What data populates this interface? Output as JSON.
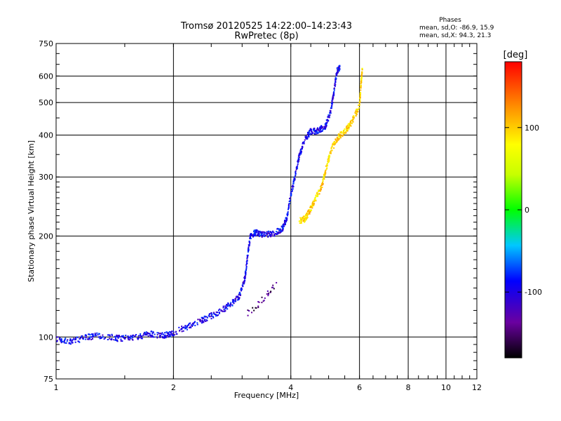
{
  "chart_data": {
    "type": "scatter",
    "title": "Tromsø 20120525 14:22:00–14:23:43",
    "subtitle": "RwPretec (8p)",
    "xlabel": "Frequency [MHz]",
    "ylabel": "Stationary phase Virtual Height [km]",
    "xscale": "log",
    "yscale": "log",
    "xlim": [
      1,
      12
    ],
    "ylim": [
      75,
      750
    ],
    "x_ticks": [
      1,
      2,
      4,
      6,
      8,
      10,
      12
    ],
    "y_ticks": [
      75,
      100,
      200,
      300,
      400,
      500,
      600,
      750
    ],
    "x_grid": [
      1,
      2,
      4,
      6,
      8,
      10,
      12
    ],
    "y_grid": [
      100,
      200,
      300,
      400,
      500,
      600
    ],
    "grid": true,
    "phases_info": {
      "heading": "Phases",
      "line_o": "mean, sd,O:  -86.9, 15.9",
      "line_x": "mean, sd,X:  94.3, 21.3"
    },
    "colorbar": {
      "label": "[deg]",
      "range": [
        -180,
        180
      ],
      "ticks": [
        100,
        0,
        -100
      ]
    },
    "traces": [
      {
        "role": "o-mode trace",
        "phase": -95,
        "points": [
          [
            1.0,
            98
          ],
          [
            1.1,
            97
          ],
          [
            1.2,
            100
          ],
          [
            1.3,
            101
          ],
          [
            1.45,
            99
          ],
          [
            1.6,
            100
          ],
          [
            1.75,
            102
          ],
          [
            1.9,
            101
          ],
          [
            2.0,
            103
          ],
          [
            2.2,
            108
          ],
          [
            2.4,
            113
          ],
          [
            2.6,
            118
          ],
          [
            2.8,
            125
          ],
          [
            2.95,
            132
          ],
          [
            3.05,
            150
          ],
          [
            3.1,
            175
          ],
          [
            3.15,
            200
          ],
          [
            3.25,
            205
          ],
          [
            3.4,
            202
          ],
          [
            3.6,
            203
          ],
          [
            3.8,
            210
          ],
          [
            3.9,
            225
          ],
          [
            4.0,
            265
          ],
          [
            4.1,
            300
          ],
          [
            4.2,
            345
          ],
          [
            4.35,
            390
          ],
          [
            4.5,
            410
          ],
          [
            4.7,
            412
          ],
          [
            4.9,
            425
          ],
          [
            5.05,
            465
          ],
          [
            5.15,
            530
          ],
          [
            5.25,
            620
          ],
          [
            5.35,
            640
          ]
        ]
      },
      {
        "role": "x-mode trace",
        "phase": 95,
        "points": [
          [
            4.2,
            222
          ],
          [
            4.35,
            225
          ],
          [
            4.45,
            235
          ],
          [
            4.6,
            255
          ],
          [
            4.8,
            280
          ],
          [
            4.95,
            325
          ],
          [
            5.1,
            365
          ],
          [
            5.3,
            395
          ],
          [
            5.55,
            415
          ],
          [
            5.75,
            440
          ],
          [
            6.0,
            490
          ],
          [
            6.05,
            560
          ],
          [
            6.1,
            630
          ]
        ]
      },
      {
        "role": "low frequency scatter",
        "phase": -150,
        "points": [
          [
            3.1,
            118
          ],
          [
            3.3,
            125
          ],
          [
            3.5,
            135
          ],
          [
            3.7,
            145
          ]
        ]
      }
    ]
  }
}
